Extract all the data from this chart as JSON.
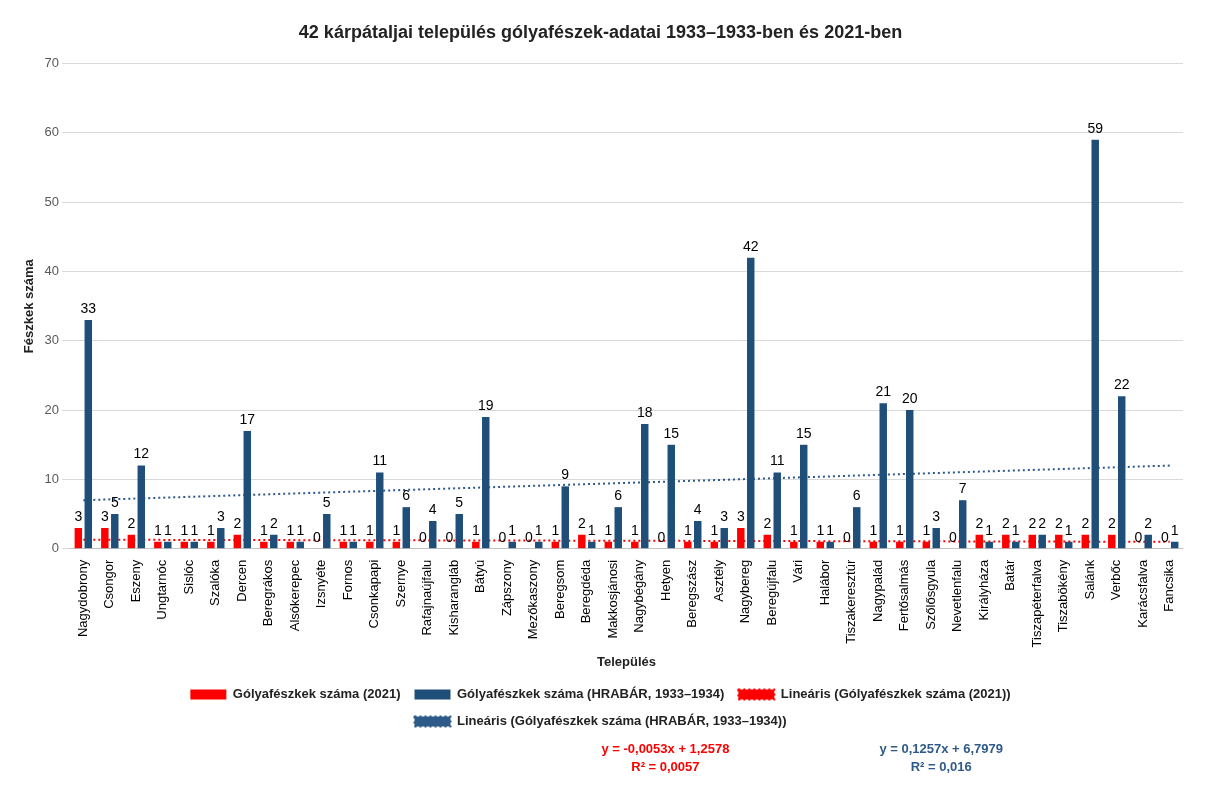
{
  "chart_data": {
    "type": "bar",
    "title": "42 kárpátaljai település gólyafészek-adatai 1933–1933-ben és 2021-ben",
    "xlabel": "Település",
    "ylabel": "Fészkek száma",
    "categories": [
      "Nagydobrony",
      "Csongor",
      "Eszeny",
      "Ungtarnóc",
      "Sislóc",
      "Szalóka",
      "Dercen",
      "Beregrákos",
      "Alsókerepec",
      "Izsnyéte",
      "Fornos",
      "Csonkapapi",
      "Szernye",
      "Rafajnaújfalu",
      "Kisharangláb",
      "Bátyú",
      "Zápszony",
      "Mezőkaszony",
      "Beregsom",
      "Beregdéda",
      "Makkosjánosi",
      "Nagybégány",
      "Hetyen",
      "Beregszász",
      "Asztély",
      "Nagybereg",
      "Beregújfalu",
      "Vári",
      "Halábor",
      "Tiszakeresztúr",
      "Nagypalád",
      "Fertősalmás",
      "Szőlősgyula",
      "Nevetlenfalu",
      "Királyháza",
      "Batár",
      "Tiszapéterfalva",
      "Tiszabökény",
      "Salánk",
      "Verbőc",
      "Karácsfalva",
      "Fancsika"
    ],
    "series": [
      {
        "name": "Gólyafészkek száma (2021)",
        "color": "#ff0000",
        "values": [
          3,
          3,
          2,
          1,
          1,
          1,
          2,
          1,
          1,
          0,
          1,
          1,
          1,
          0,
          0,
          1,
          0,
          0,
          1,
          2,
          1,
          1,
          0,
          1,
          1,
          3,
          2,
          1,
          1,
          0,
          1,
          1,
          1,
          0,
          2,
          2,
          2,
          2,
          2,
          2,
          0,
          0
        ],
        "value_labels": [
          "3",
          "3",
          "2",
          "1",
          "1",
          "1",
          "2",
          "1",
          "1",
          "0",
          "1",
          "1",
          "1",
          "0",
          "0",
          "1",
          "0",
          "0",
          "1",
          "2",
          "1",
          "1",
          "0",
          "1",
          "1",
          "3",
          "2",
          "1",
          "1",
          "0",
          "1",
          "1",
          "1",
          "0",
          "2",
          "2",
          "2",
          "2",
          "2",
          "2",
          "0",
          "0"
        ]
      },
      {
        "name": "Gólyafészkek száma (HRABÁR, 1933–1934)",
        "color": "#1f4e79",
        "values": [
          33,
          5,
          12,
          1,
          1,
          3,
          17,
          2,
          1,
          5,
          1,
          11,
          6,
          4,
          5,
          19,
          1,
          1,
          9,
          1,
          6,
          18,
          15,
          4,
          3,
          42,
          11,
          15,
          1,
          6,
          21,
          20,
          3,
          7,
          1,
          1,
          2,
          1,
          59,
          22,
          2,
          1
        ],
        "value_labels": [
          "33",
          "5",
          "12",
          "1",
          "1",
          "3",
          "17",
          "2",
          "1",
          "5",
          "1",
          "11",
          "6",
          "4",
          "5",
          "19",
          "1",
          "1",
          "9",
          "1",
          "6",
          "18",
          "15",
          "4",
          "3",
          "42",
          "11",
          "15",
          "1",
          "6",
          "21",
          "20",
          "3",
          "7",
          "1",
          "1",
          "2",
          "1",
          "59",
          "22",
          "2",
          "1"
        ]
      },
      {
        "name": "Lineáris (Gólyafészkek száma (2021))",
        "type": "line",
        "color": "#ff0000",
        "values": [
          1.3,
          null,
          null,
          null,
          null,
          null,
          null,
          null,
          null,
          null,
          null,
          null,
          null,
          null,
          null,
          null,
          null,
          null,
          null,
          null,
          null,
          null,
          null,
          null,
          null,
          null,
          null,
          null,
          null,
          null,
          null,
          null,
          null,
          null,
          null,
          null,
          null,
          null,
          null,
          null,
          null,
          1
        ]
      },
      {
        "name": "Lineáris (Gólyafészkek száma (HRABÁR, 1933–1934))",
        "type": "line",
        "color": "#2e5a8a",
        "values": [
          7,
          null,
          null,
          null,
          null,
          null,
          null,
          null,
          null,
          null,
          null,
          null,
          null,
          null,
          null,
          null,
          null,
          null,
          null,
          null,
          null,
          null,
          null,
          null,
          null,
          null,
          null,
          null,
          null,
          null,
          null,
          null,
          null,
          null,
          null,
          null,
          null,
          null,
          null,
          null,
          null,
          12
        ]
      }
    ],
    "annotations": [
      "y = -0,0053x + 1,2578",
      "R² = 0,0057",
      "y = 0,1257x + 6,7979",
      "R² = 0,016"
    ],
    "ylim": [
      0,
      70
    ],
    "yticks": [
      0,
      10,
      20,
      30,
      40,
      50,
      60,
      70
    ],
    "grid": "y",
    "legend": "bottom",
    "line_style": "dotted",
    "marker": "none"
  }
}
